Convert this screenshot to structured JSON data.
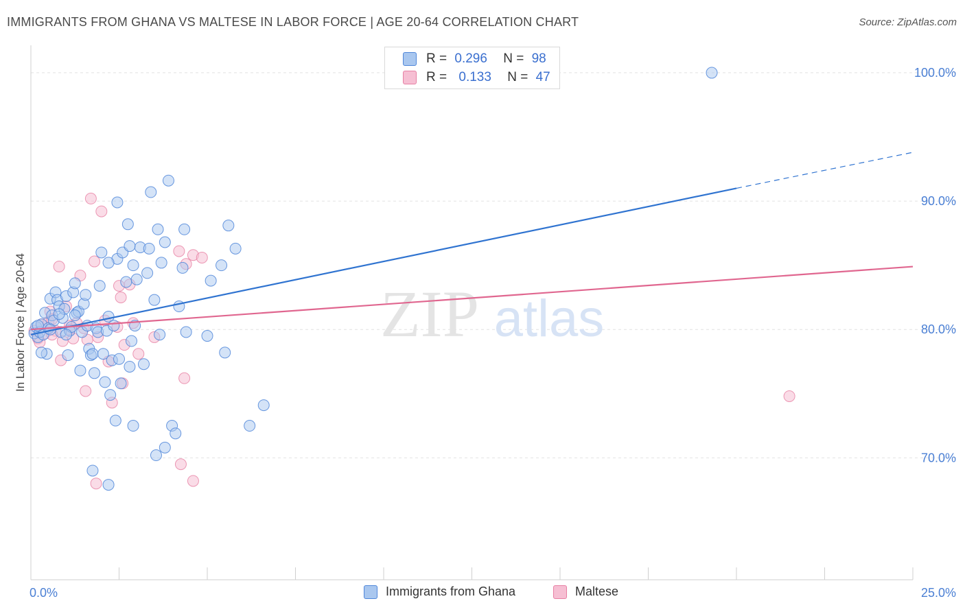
{
  "title": "IMMIGRANTS FROM GHANA VS MALTESE IN LABOR FORCE | AGE 20-64 CORRELATION CHART",
  "source": "Source: ZipAtlas.com",
  "watermark": {
    "zip": "ZIP",
    "atlas": "atlas"
  },
  "colors": {
    "blue": "#4f86d9",
    "blue_fill": "#a9c7ef",
    "blue_line": "#2f73d0",
    "pink": "#e77fa3",
    "pink_fill": "#f6bfd3",
    "pink_line": "#e0668f",
    "tick_label": "#4a7fd4",
    "grid": "#e2e2e2"
  },
  "legend_top": {
    "rows": [
      {
        "r_label": "R =",
        "r_value": "0.296",
        "n_label": "N =",
        "n_value": "98"
      },
      {
        "r_label": "R =",
        "r_value": "0.133",
        "n_label": "N =",
        "n_value": "47"
      }
    ]
  },
  "legend_bottom": {
    "items": [
      "Immigrants from Ghana",
      "Maltese"
    ]
  },
  "chart_data": {
    "type": "scatter",
    "title": "IMMIGRANTS FROM GHANA VS MALTESE IN LABOR FORCE | AGE 20-64 CORRELATION CHART",
    "xlabel": "",
    "ylabel": "In Labor Force | Age 20-64",
    "xlim": [
      0,
      25
    ],
    "ylim": [
      60.5,
      101.5
    ],
    "x_tick_labels": [
      "0.0%",
      "25.0%"
    ],
    "y_ticks": [
      70,
      80,
      90,
      100
    ],
    "y_tick_labels": [
      "70.0%",
      "80.0%",
      "90.0%",
      "100.0%"
    ],
    "grid": true,
    "legend_position": "top-center",
    "series": [
      {
        "name": "Immigrants from Ghana",
        "stats": {
          "R": 0.296,
          "N": 98
        },
        "trend": {
          "x0": 0.0,
          "y0": 79.6,
          "x1": 20.0,
          "y1": 91.0,
          "dash_to_x": 25.0,
          "dash_to_y": 93.8
        },
        "points": [
          [
            0.1,
            79.7
          ],
          [
            0.15,
            80.2
          ],
          [
            0.2,
            79.4
          ],
          [
            0.25,
            79.8
          ],
          [
            0.3,
            80.4
          ],
          [
            0.35,
            79.6
          ],
          [
            0.4,
            81.3
          ],
          [
            0.45,
            78.1
          ],
          [
            0.5,
            80.1
          ],
          [
            0.55,
            82.4
          ],
          [
            0.6,
            81.1
          ],
          [
            0.65,
            80.7
          ],
          [
            0.7,
            82.9
          ],
          [
            0.75,
            82.3
          ],
          [
            0.8,
            81.8
          ],
          [
            0.85,
            79.8
          ],
          [
            0.9,
            80.9
          ],
          [
            0.95,
            81.6
          ],
          [
            1.0,
            82.6
          ],
          [
            1.05,
            78.0
          ],
          [
            1.1,
            79.9
          ],
          [
            1.15,
            80.2
          ],
          [
            1.2,
            82.9
          ],
          [
            1.25,
            83.6
          ],
          [
            1.3,
            81.3
          ],
          [
            1.35,
            81.4
          ],
          [
            1.4,
            76.8
          ],
          [
            1.45,
            79.8
          ],
          [
            1.5,
            82.0
          ],
          [
            1.55,
            82.7
          ],
          [
            1.6,
            80.3
          ],
          [
            1.65,
            78.5
          ],
          [
            1.7,
            78.0
          ],
          [
            1.75,
            78.1
          ],
          [
            1.8,
            76.6
          ],
          [
            1.85,
            80.1
          ],
          [
            1.9,
            79.8
          ],
          [
            1.95,
            83.4
          ],
          [
            2.0,
            86.0
          ],
          [
            2.05,
            78.1
          ],
          [
            2.1,
            75.9
          ],
          [
            2.15,
            79.9
          ],
          [
            2.2,
            81.0
          ],
          [
            2.25,
            74.9
          ],
          [
            2.3,
            77.6
          ],
          [
            2.35,
            80.3
          ],
          [
            2.4,
            72.9
          ],
          [
            2.45,
            85.5
          ],
          [
            2.5,
            77.7
          ],
          [
            2.55,
            75.8
          ],
          [
            2.6,
            86.0
          ],
          [
            2.7,
            83.7
          ],
          [
            2.75,
            88.2
          ],
          [
            2.8,
            77.1
          ],
          [
            2.85,
            79.1
          ],
          [
            2.9,
            85.0
          ],
          [
            2.95,
            80.3
          ],
          [
            3.0,
            83.9
          ],
          [
            3.1,
            86.4
          ],
          [
            3.2,
            77.3
          ],
          [
            3.3,
            84.4
          ],
          [
            3.4,
            90.7
          ],
          [
            3.5,
            82.3
          ],
          [
            3.6,
            87.8
          ],
          [
            3.65,
            79.6
          ],
          [
            3.7,
            85.2
          ],
          [
            3.8,
            86.8
          ],
          [
            3.9,
            91.6
          ],
          [
            4.0,
            72.5
          ],
          [
            4.1,
            71.9
          ],
          [
            4.2,
            81.8
          ],
          [
            4.3,
            84.8
          ],
          [
            4.35,
            87.8
          ],
          [
            4.4,
            79.8
          ],
          [
            5.0,
            79.5
          ],
          [
            5.1,
            83.8
          ],
          [
            5.4,
            85.0
          ],
          [
            5.5,
            78.2
          ],
          [
            5.6,
            88.1
          ],
          [
            5.8,
            86.3
          ],
          [
            6.2,
            72.5
          ],
          [
            6.6,
            74.1
          ],
          [
            1.75,
            69.0
          ],
          [
            2.2,
            67.9
          ],
          [
            2.45,
            89.9
          ],
          [
            3.55,
            70.2
          ],
          [
            3.8,
            70.8
          ],
          [
            2.9,
            72.5
          ],
          [
            0.55,
            80.0
          ],
          [
            1.0,
            79.6
          ],
          [
            1.25,
            81.1
          ],
          [
            0.8,
            81.2
          ],
          [
            19.3,
            100.0
          ],
          [
            0.3,
            78.2
          ],
          [
            0.2,
            80.3
          ],
          [
            2.2,
            85.2
          ],
          [
            2.8,
            86.5
          ],
          [
            3.35,
            86.3
          ]
        ]
      },
      {
        "name": "Maltese",
        "stats": {
          "R": 0.133,
          "N": 47
        },
        "trend": {
          "x0": 0.0,
          "y0": 80.0,
          "x1": 25.0,
          "y1": 84.9
        },
        "points": [
          [
            0.1,
            79.9
          ],
          [
            0.2,
            79.3
          ],
          [
            0.3,
            80.4
          ],
          [
            0.4,
            79.7
          ],
          [
            0.5,
            80.6
          ],
          [
            0.55,
            81.4
          ],
          [
            0.6,
            80.8
          ],
          [
            0.7,
            79.9
          ],
          [
            0.8,
            84.9
          ],
          [
            0.85,
            77.6
          ],
          [
            0.9,
            79.1
          ],
          [
            1.0,
            81.8
          ],
          [
            1.1,
            80.3
          ],
          [
            1.2,
            79.3
          ],
          [
            1.3,
            80.5
          ],
          [
            1.4,
            84.2
          ],
          [
            1.5,
            80.1
          ],
          [
            1.55,
            75.2
          ],
          [
            1.6,
            79.2
          ],
          [
            1.7,
            90.2
          ],
          [
            1.8,
            85.3
          ],
          [
            1.9,
            79.4
          ],
          [
            2.0,
            89.2
          ],
          [
            2.1,
            80.7
          ],
          [
            2.2,
            77.5
          ],
          [
            2.3,
            74.3
          ],
          [
            2.45,
            80.2
          ],
          [
            2.5,
            83.4
          ],
          [
            2.55,
            82.5
          ],
          [
            2.6,
            75.8
          ],
          [
            2.65,
            78.8
          ],
          [
            2.8,
            83.5
          ],
          [
            2.9,
            80.5
          ],
          [
            3.05,
            78.1
          ],
          [
            3.5,
            79.4
          ],
          [
            4.2,
            86.1
          ],
          [
            4.35,
            76.2
          ],
          [
            4.4,
            85.1
          ],
          [
            4.6,
            85.8
          ],
          [
            4.85,
            85.6
          ],
          [
            1.85,
            68.0
          ],
          [
            4.25,
            69.5
          ],
          [
            4.6,
            68.2
          ],
          [
            21.5,
            74.8
          ],
          [
            0.25,
            79.0
          ],
          [
            0.6,
            79.6
          ],
          [
            1.1,
            80.0
          ]
        ]
      }
    ]
  }
}
